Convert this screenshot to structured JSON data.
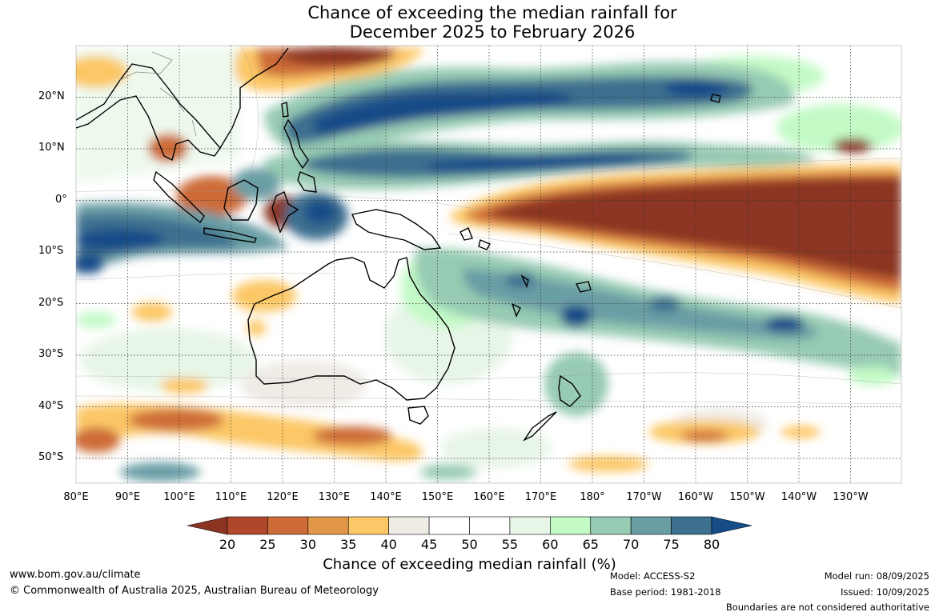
{
  "title": {
    "line1": "Chance of exceeding the median rainfall for",
    "line2": "December 2025 to February 2026"
  },
  "map": {
    "lat_labels": [
      "20°N",
      "10°N",
      "0°",
      "10°S",
      "20°S",
      "30°S",
      "40°S",
      "50°S"
    ],
    "lon_labels": [
      "80°E",
      "90°E",
      "100°E",
      "110°E",
      "120°E",
      "130°E",
      "140°E",
      "150°E",
      "160°E",
      "170°E",
      "180°",
      "170°W",
      "160°W",
      "150°W",
      "140°W",
      "130°W"
    ]
  },
  "colorbar": {
    "ticks": [
      "20",
      "25",
      "30",
      "35",
      "40",
      "45",
      "50",
      "55",
      "60",
      "65",
      "70",
      "75",
      "80"
    ],
    "colors": [
      "#8b3422",
      "#b1472a",
      "#cd6c38",
      "#e29648",
      "#fcc766",
      "#efece6",
      "#ffffff",
      "#ffffff",
      "#e7f6e7",
      "#c3fac6",
      "#97cbb3",
      "#6a9ea5",
      "#3e708f",
      "#164c88"
    ],
    "label": "Chance of exceeding median rainfall (%)"
  },
  "footer": {
    "website": "www.bom.gov.au/climate",
    "copyright": "© Commonwealth of Australia 2025, Australian Bureau of Meteorology",
    "model": "Model: ACCESS-S2",
    "base_period": "Base period: 1981-2018",
    "model_run": "Model run: 08/09/2025",
    "issued": "Issued: 10/09/2025",
    "disclaimer": "Boundaries are not considered authoritative"
  }
}
